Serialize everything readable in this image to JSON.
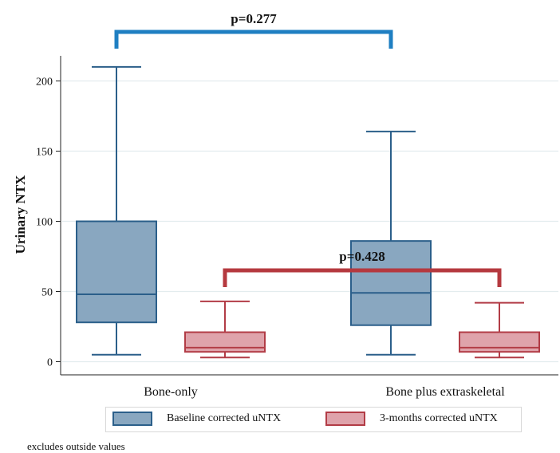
{
  "chart_data": {
    "type": "boxplot",
    "ylabel": "Urinary NTX",
    "xlabel": "",
    "ylim": [
      -10,
      220
    ],
    "yticks": [
      0,
      50,
      100,
      150,
      200
    ],
    "grid": true,
    "categories": [
      "Bone-only",
      "Bone plus extraskeletal"
    ],
    "series": [
      {
        "name": "Baseline corrected uNTX",
        "color": "#2b5f8a",
        "fill": "#89a7c0",
        "boxes": [
          {
            "category": "Bone-only",
            "whisker_low": 5,
            "q1": 28,
            "median": 48,
            "q3": 100,
            "whisker_high": 210
          },
          {
            "category": "Bone plus extraskeletal",
            "whisker_low": 5,
            "q1": 26,
            "median": 49,
            "q3": 86,
            "whisker_high": 164
          }
        ]
      },
      {
        "name": "3-months corrected uNTX",
        "color": "#b23c46",
        "fill": "#dfa3ab",
        "boxes": [
          {
            "category": "Bone-only",
            "whisker_low": 3,
            "q1": 7,
            "median": 10,
            "q3": 21,
            "whisker_high": 43
          },
          {
            "category": "Bone plus extraskeletal",
            "whisker_low": 3,
            "q1": 7,
            "median": 10,
            "q3": 21,
            "whisker_high": 42
          }
        ]
      }
    ],
    "annotations": [
      {
        "text": "p=0.277",
        "color": "#1f7fc2",
        "from": "Bone-only / Baseline corrected uNTX",
        "to": "Bone plus extraskeletal / Baseline corrected uNTX"
      },
      {
        "text": "p=0.428",
        "color": "#b5393f",
        "from": "Bone-only / 3-months corrected uNTX",
        "to": "Bone plus extraskeletal / 3-months corrected uNTX"
      }
    ],
    "legend": {
      "position": "bottom"
    },
    "note": "excludes outside values"
  }
}
